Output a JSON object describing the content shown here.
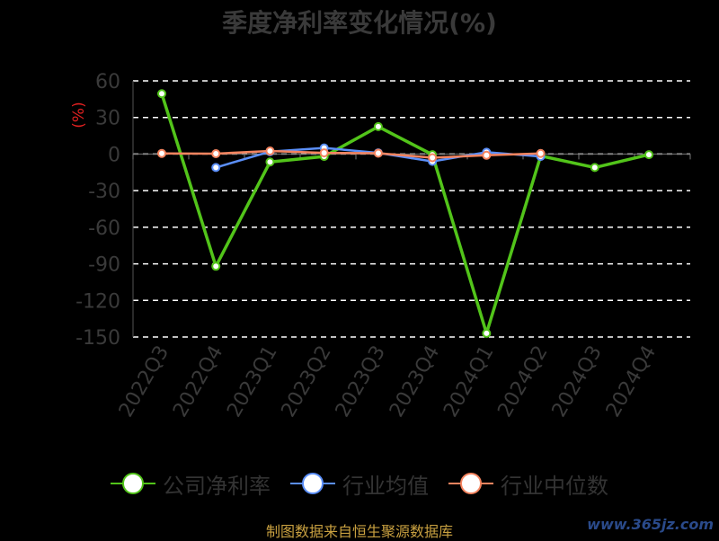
{
  "chart_data": {
    "type": "line",
    "title": "季度净利率变化情况(%)",
    "ylabel": "(%)",
    "categories": [
      "2022Q3",
      "2022Q4",
      "2023Q1",
      "2023Q2",
      "2023Q3",
      "2023Q4",
      "2024Q1",
      "2024Q2",
      "2024Q3",
      "2024Q4"
    ],
    "ylim": [
      -150,
      60
    ],
    "yticks": [
      60,
      30,
      0,
      -30,
      -60,
      -90,
      -120,
      -150
    ],
    "grid": true,
    "legend_position": "bottom",
    "series": [
      {
        "name": "公司净利率",
        "color": "#52c41a",
        "values": [
          49.5,
          -92.0,
          -6.5,
          -2.0,
          22.5,
          -0.5,
          -147.0,
          -1.5,
          -11.0,
          -0.5
        ]
      },
      {
        "name": "行业均值",
        "color": "#5b8ff9",
        "values": [
          null,
          -11.0,
          2.0,
          5.0,
          1.0,
          -6.0,
          1.5,
          -2.0,
          null,
          null
        ]
      },
      {
        "name": "行业中位数",
        "color": "#f4845f",
        "values": [
          0.5,
          0.3,
          2.5,
          1.0,
          0.7,
          -3.0,
          -1.0,
          0.5,
          null,
          null
        ]
      }
    ]
  },
  "source_text": "制图数据来自恒生聚源数据库",
  "watermark_text": "www.365jz.com"
}
